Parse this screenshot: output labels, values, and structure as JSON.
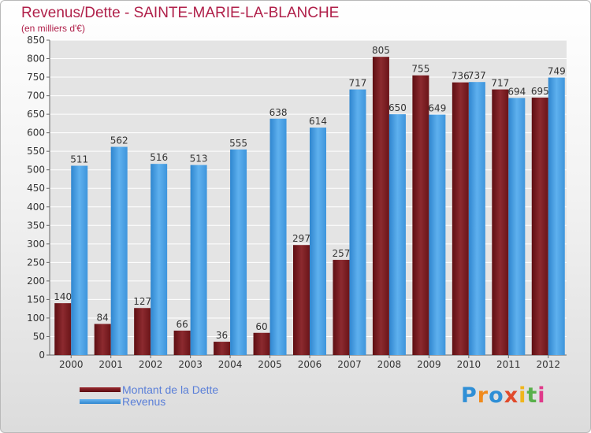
{
  "chart_data": {
    "type": "bar",
    "title": "Revenus/Dette - SAINTE-MARIE-LA-BLANCHE",
    "subtitle": "(en milliers d'€)",
    "categories": [
      "2000",
      "2001",
      "2002",
      "2003",
      "2004",
      "2005",
      "2006",
      "2007",
      "2008",
      "2009",
      "2010",
      "2011",
      "2012"
    ],
    "series": [
      {
        "name": "Montant de la Dette",
        "color": "#7a1a1f",
        "values": [
          140,
          84,
          127,
          66,
          36,
          60,
          297,
          257,
          805,
          755,
          736,
          717,
          695
        ]
      },
      {
        "name": "Revenus",
        "color": "#4ea2e6",
        "values": [
          511,
          562,
          516,
          513,
          555,
          638,
          614,
          717,
          650,
          649,
          737,
          694,
          749
        ]
      }
    ],
    "ylim": [
      0,
      850
    ],
    "yticks": [
      0,
      50,
      100,
      150,
      200,
      250,
      300,
      350,
      400,
      450,
      500,
      550,
      600,
      650,
      700,
      750,
      800,
      850
    ],
    "xlabel": "",
    "ylabel": "",
    "grid": true,
    "legend_position": "bottom-left"
  },
  "logo": {
    "text": "Proxiti",
    "colors": [
      "#2f8fd6",
      "#f08a1c",
      "#2f8fd6",
      "#e14a2b",
      "#f0b51c",
      "#58b04a",
      "#e03a8a"
    ]
  }
}
